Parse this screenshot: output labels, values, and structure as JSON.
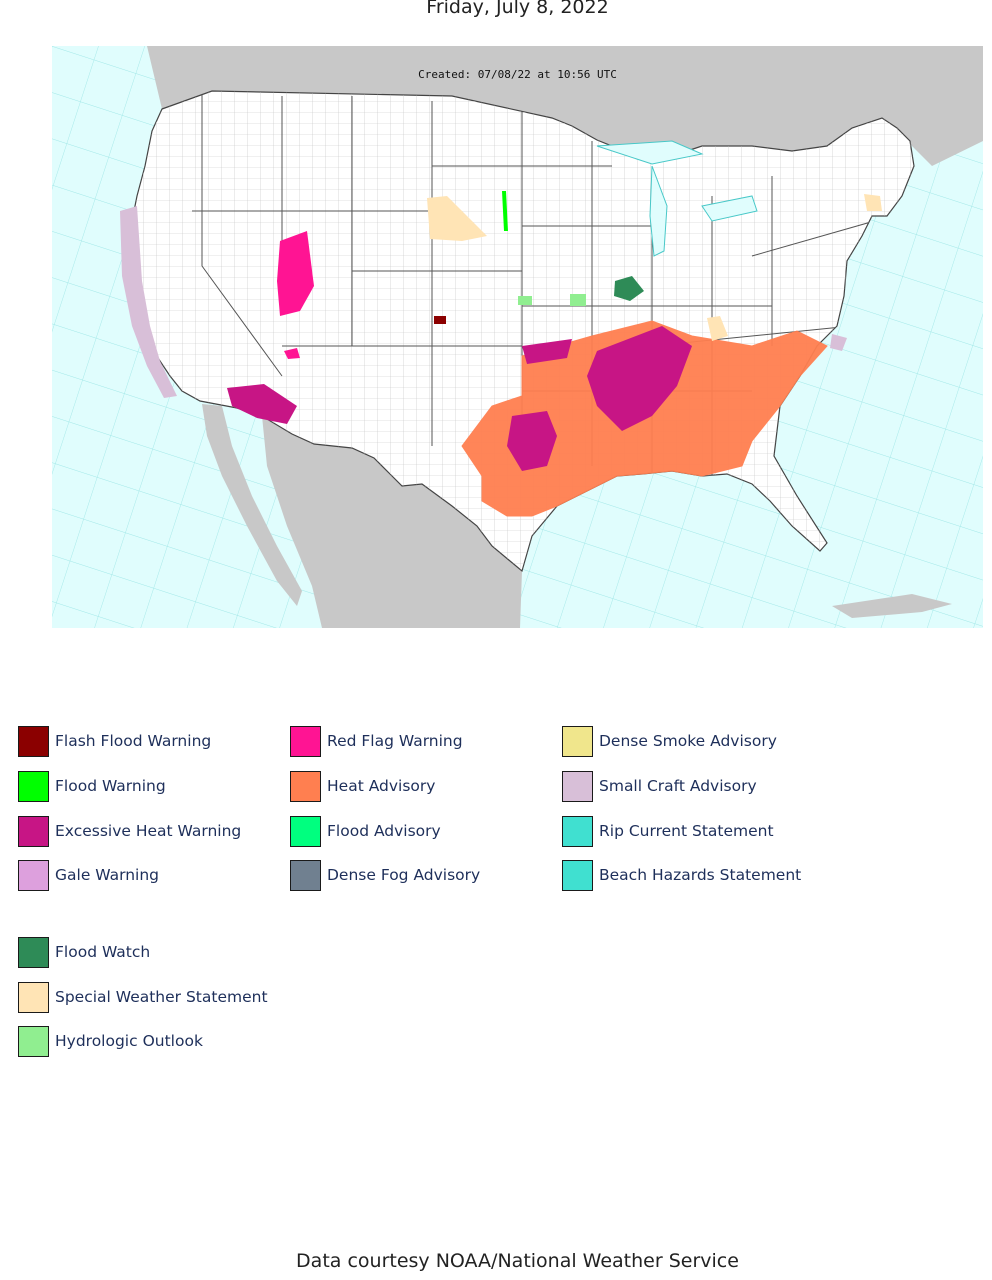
{
  "page": {
    "title": "Friday, July 8, 2022",
    "footer": "Data courtesy NOAA/National Weather Service"
  },
  "map": {
    "created_label": "Created: 07/08/22 at 10:56 UTC",
    "colors": {
      "ocean": "#e0fdfd",
      "land_foreign": "#c8c8c8",
      "land_us": "#ffffff",
      "marine_zone_lines": "#48c8c8",
      "county_lines": "#b0b0b0",
      "state_lines": "#555555"
    }
  },
  "legend": {
    "items": [
      {
        "label": "Flash Flood Warning",
        "color": "#8b0000"
      },
      {
        "label": "Flood Warning",
        "color": "#00ff00"
      },
      {
        "label": "Excessive Heat Warning",
        "color": "#c71585"
      },
      {
        "label": "Gale Warning",
        "color": "#dda0dd"
      },
      {
        "label": "Red Flag Warning",
        "color": "#ff1493"
      },
      {
        "label": "Heat Advisory",
        "color": "#ff7f50"
      },
      {
        "label": "Flood Advisory",
        "color": "#00ff7f"
      },
      {
        "label": "Dense Fog Advisory",
        "color": "#708090"
      },
      {
        "label": "Dense Smoke Advisory",
        "color": "#f0e68c"
      },
      {
        "label": "Small Craft Advisory",
        "color": "#d8bfd8"
      },
      {
        "label": "Rip Current Statement",
        "color": "#40e0d0"
      },
      {
        "label": "Beach Hazards Statement",
        "color": "#40e0d0"
      },
      {
        "label": "Flood Watch",
        "color": "#2e8b57"
      },
      {
        "label": "Special Weather Statement",
        "color": "#ffe4b5"
      },
      {
        "label": "Hydrologic Outlook",
        "color": "#90ee90"
      }
    ]
  }
}
